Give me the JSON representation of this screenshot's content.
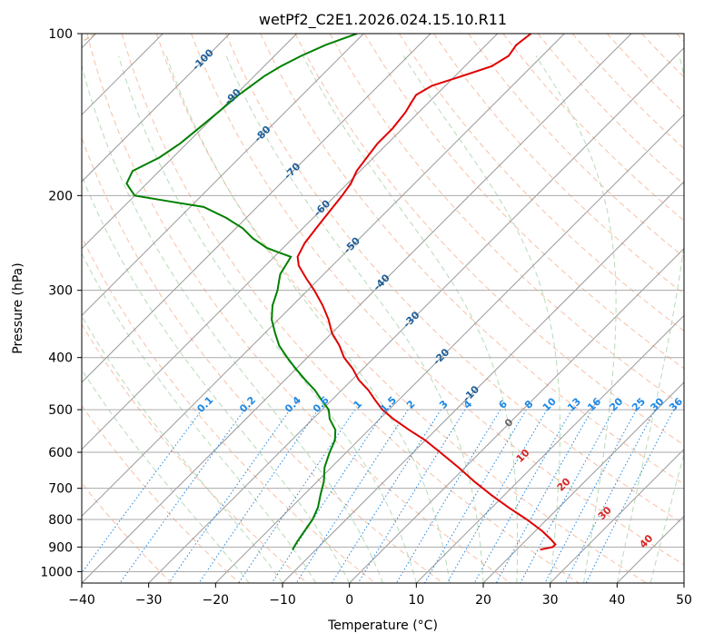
{
  "chart_data": {
    "type": "line",
    "title": "wetPf2_C2E1.2026.024.15.10.R11",
    "xlabel": "Temperature (°C)",
    "ylabel": "Pressure (hPa)",
    "xlim": [
      -40,
      50
    ],
    "ylim": [
      1050,
      100
    ],
    "x_ticks": [
      "−40",
      "−30",
      "−20",
      "−10",
      "0",
      "10",
      "20",
      "30",
      "40",
      "50"
    ],
    "x_tick_values": [
      -40,
      -30,
      -20,
      -10,
      0,
      10,
      20,
      30,
      40,
      50
    ],
    "y_ticks": [
      "100",
      "200",
      "300",
      "400",
      "500",
      "600",
      "700",
      "800",
      "900",
      "1000"
    ],
    "y_tick_values": [
      100,
      200,
      300,
      400,
      500,
      600,
      700,
      800,
      900,
      1000
    ],
    "grid": true,
    "skew": true,
    "colors": {
      "temperature": "#e00000",
      "dewpoint": "#008000",
      "dry_adiabat": "#f4a582",
      "moist_adiabat": "#9ecf9e",
      "mixing_ratio": "#1e88e5",
      "isotherm": "#999999",
      "theta_e": "#d2b48c",
      "isotherm_label": "#1f5f99",
      "dry_label": "#d62728",
      "zero_label": "#666666"
    },
    "series": [
      {
        "name": "Temperature",
        "pressure": [
          100,
          105,
          110,
          115,
          120,
          125,
          130,
          135,
          140,
          150,
          160,
          170,
          180,
          190,
          200,
          215,
          230,
          245,
          260,
          270,
          285,
          300,
          320,
          340,
          360,
          380,
          400,
          420,
          440,
          460,
          480,
          500,
          520,
          545,
          570,
          600,
          640,
          680,
          720,
          760,
          800,
          840,
          870,
          890,
          900,
          910
        ],
        "values": [
          -55.0,
          -55.5,
          -55.0,
          -56.0,
          -59.0,
          -62.0,
          -63.0,
          -62.5,
          -62.0,
          -61.5,
          -61.5,
          -61.0,
          -60.5,
          -59.5,
          -59.0,
          -58.5,
          -58.0,
          -57.5,
          -56.5,
          -55.0,
          -52.0,
          -49.0,
          -45.5,
          -42.5,
          -40.0,
          -37.0,
          -34.5,
          -31.5,
          -29.0,
          -26.0,
          -23.5,
          -21.0,
          -18.0,
          -14.0,
          -10.0,
          -6.0,
          -1.0,
          3.5,
          8.0,
          12.5,
          17.0,
          21.0,
          23.5,
          25.0,
          25.0,
          23.5
        ]
      },
      {
        "name": "Dewpoint",
        "pressure": [
          100,
          105,
          110,
          115,
          120,
          125,
          130,
          140,
          150,
          160,
          170,
          180,
          190,
          195,
          200,
          205,
          210,
          220,
          230,
          240,
          250,
          255,
          260,
          270,
          280,
          290,
          300,
          320,
          340,
          360,
          380,
          400,
          420,
          440,
          460,
          480,
          500,
          520,
          545,
          570,
          600,
          640,
          680,
          720,
          760,
          800,
          840,
          880,
          910
        ],
        "values": [
          -81.0,
          -84.0,
          -86.0,
          -87.5,
          -88.5,
          -89.0,
          -89.5,
          -90.0,
          -90.5,
          -91.0,
          -92.0,
          -94.0,
          -93.0,
          -91.5,
          -90.0,
          -84.0,
          -78.0,
          -73.0,
          -69.0,
          -66.0,
          -62.5,
          -60.0,
          -57.5,
          -57.0,
          -56.5,
          -55.5,
          -54.5,
          -53.0,
          -51.0,
          -48.5,
          -46.0,
          -43.0,
          -40.0,
          -37.0,
          -34.0,
          -31.5,
          -29.0,
          -27.5,
          -25.0,
          -23.5,
          -22.5,
          -21.0,
          -19.0,
          -17.5,
          -16.0,
          -15.0,
          -14.5,
          -14.0,
          -13.5
        ]
      }
    ],
    "isotherm_labels": [
      "-100",
      "-90",
      "-80",
      "-70",
      "-60",
      "-50",
      "-40",
      "-30",
      "-20",
      "-10"
    ],
    "isotherm_label_values": [
      -100,
      -90,
      -80,
      -70,
      -60,
      -50,
      -40,
      -30,
      -20,
      -10
    ],
    "mixing_ratio_labels": [
      "0.1",
      "0.2",
      "0.4",
      "0.6",
      "1",
      "1.5",
      "2",
      "3",
      "4",
      "6",
      "8",
      "10",
      "13",
      "16",
      "20",
      "25",
      "30",
      "36"
    ],
    "mixing_ratio_label_values": [
      0.1,
      0.2,
      0.4,
      0.6,
      1,
      1.5,
      2,
      3,
      4,
      6,
      8,
      10,
      13,
      16,
      20,
      25,
      30,
      36
    ],
    "isotherm_zero_label": "0",
    "dry_adiabat_labels": [
      "10",
      "20",
      "30",
      "40"
    ],
    "dry_adiabat_label_values": [
      10,
      20,
      30,
      40
    ]
  }
}
